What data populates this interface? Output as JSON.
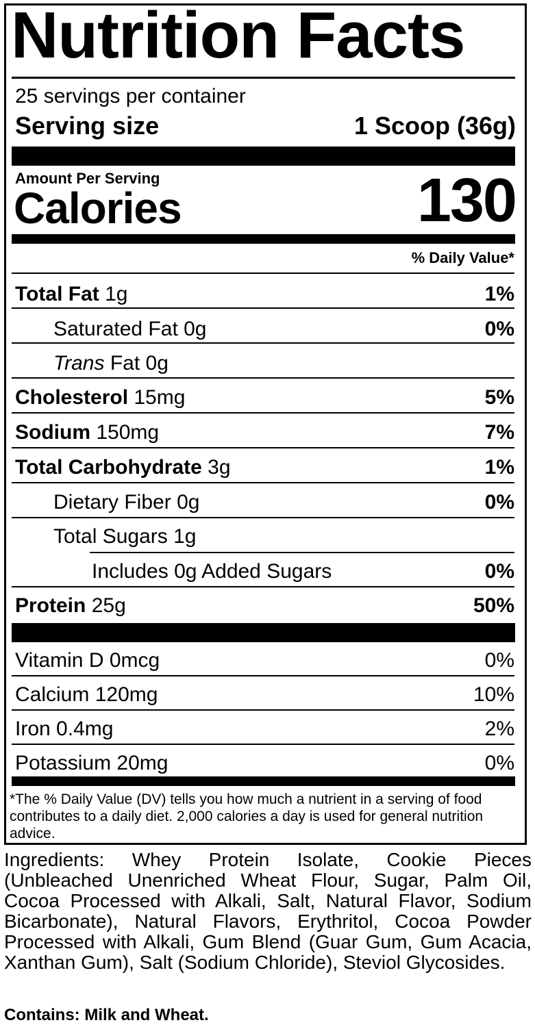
{
  "title": "Nutrition Facts",
  "servings_per_container": "25 servings per container",
  "serving_size": {
    "label": "Serving size",
    "value": "1 Scoop (36g)"
  },
  "amount_per_serving": "Amount Per Serving",
  "calories": {
    "label": "Calories",
    "value": "130"
  },
  "daily_value_header": "% Daily Value*",
  "nutrients": [
    {
      "name": "Total Fat",
      "amount": "1g",
      "dv": "1%"
    },
    {
      "name": "Saturated Fat",
      "amount": "0g",
      "dv": "0%"
    },
    {
      "name_italic": "Trans",
      "name": "Fat",
      "amount": "0g",
      "dv": ""
    },
    {
      "name": "Cholesterol",
      "amount": "15mg",
      "dv": "5%"
    },
    {
      "name": "Sodium",
      "amount": "150mg",
      "dv": "7%"
    },
    {
      "name": "Total Carbohydrate",
      "amount": "3g",
      "dv": "1%"
    },
    {
      "name": "Dietary Fiber",
      "amount": "0g",
      "dv": "0%"
    },
    {
      "name": "Total Sugars",
      "amount": "1g",
      "dv": ""
    },
    {
      "name": "Includes 0g Added Sugars",
      "amount": "",
      "dv": "0%"
    },
    {
      "name": "Protein",
      "amount": "25g",
      "dv": "50%"
    }
  ],
  "vitamins": [
    {
      "name": "Vitamin D",
      "amount": "0mcg",
      "dv": "0%"
    },
    {
      "name": "Calcium",
      "amount": "120mg",
      "dv": "10%"
    },
    {
      "name": "Iron",
      "amount": "0.4mg",
      "dv": "2%"
    },
    {
      "name": "Potassium",
      "amount": "20mg",
      "dv": "0%"
    }
  ],
  "footnote": "*The % Daily Value (DV) tells you how much a nutrient in a serving of food contributes to a daily diet. 2,000 calories a day is used for general nutrition advice.",
  "ingredients": "Ingredients: Whey Protein Isolate, Cookie Pieces (Unbleached Unenriched Wheat Flour, Sugar, Palm Oil, Cocoa Processed with Alkali, Salt, Natural Flavor, Sodium Bicarbonate), Natural Flavors, Erythritol, Cocoa Powder Processed with Alkali, Gum Blend (Guar Gum, Gum Acacia, Xanthan Gum), Salt (Sodium Chloride), Steviol Glycosides.",
  "contains": "Contains: Milk and Wheat."
}
